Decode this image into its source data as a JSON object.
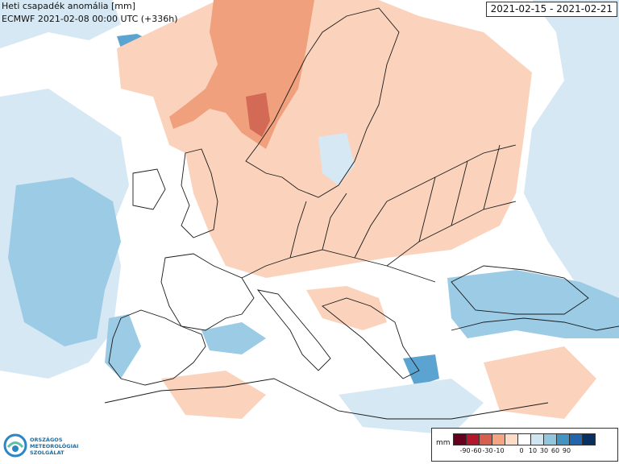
{
  "title": {
    "line1": "Heti csapadék anomália [mm]",
    "line2": "ECMWF 2021-02-08 00:00 UTC (+336h)"
  },
  "date_range": "2021-02-15 - 2021-02-21",
  "logo": {
    "line1": "ORSZÁGOS",
    "line2": "METEOROLÓGIAI",
    "line3": "SZOLGÁLAT"
  },
  "legend": {
    "unit": "mm",
    "colors": [
      "#67001f",
      "#b2182b",
      "#d6604d",
      "#f4a582",
      "#fddbc7",
      "#ffffff",
      "#d1e5f0",
      "#92c5de",
      "#4393c3",
      "#2166ac",
      "#053061"
    ],
    "labels": [
      "-90",
      "-60",
      "-30",
      "-10",
      "0",
      "10",
      "30",
      "60",
      "90"
    ]
  },
  "colors": {
    "land_dry": "#fbd3bd",
    "land_very_dry": "#f0a07c",
    "extreme_dry": "#d26a56",
    "wet_light": "#d6e8f4",
    "wet_medium": "#9ccbe6",
    "wet_strong": "#5ba3d1",
    "border": "#1a1a1a"
  }
}
